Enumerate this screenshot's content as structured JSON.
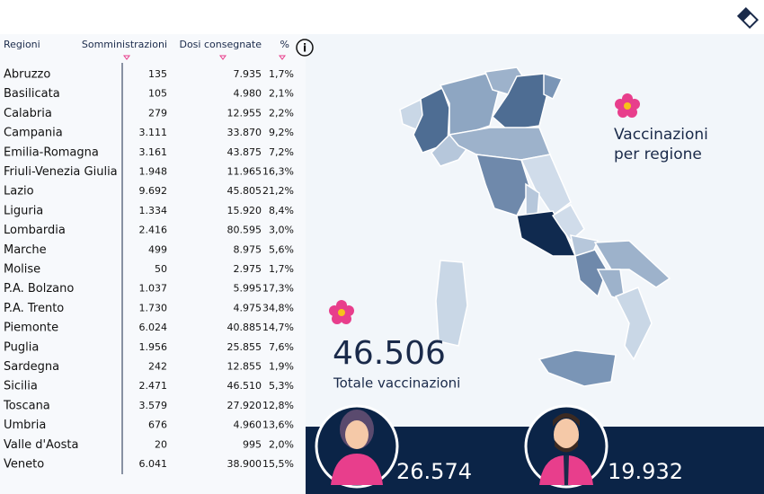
{
  "table": {
    "headers": [
      "Regioni",
      "Somministrazioni",
      "Dosi consegnate",
      "%"
    ],
    "rows": [
      [
        "Abruzzo",
        "135",
        "7.935",
        "1,7%"
      ],
      [
        "Basilicata",
        "105",
        "4.980",
        "2,1%"
      ],
      [
        "Calabria",
        "279",
        "12.955",
        "2,2%"
      ],
      [
        "Campania",
        "3.111",
        "33.870",
        "9,2%"
      ],
      [
        "Emilia-Romagna",
        "3.161",
        "43.875",
        "7,2%"
      ],
      [
        "Friuli-Venezia Giulia",
        "1.948",
        "11.965",
        "16,3%"
      ],
      [
        "Lazio",
        "9.692",
        "45.805",
        "21,2%"
      ],
      [
        "Liguria",
        "1.334",
        "15.920",
        "8,4%"
      ],
      [
        "Lombardia",
        "2.416",
        "80.595",
        "3,0%"
      ],
      [
        "Marche",
        "499",
        "8.975",
        "5,6%"
      ],
      [
        "Molise",
        "50",
        "2.975",
        "1,7%"
      ],
      [
        "P.A. Bolzano",
        "1.037",
        "5.995",
        "17,3%"
      ],
      [
        "P.A. Trento",
        "1.730",
        "4.975",
        "34,8%"
      ],
      [
        "Piemonte",
        "6.024",
        "40.885",
        "14,7%"
      ],
      [
        "Puglia",
        "1.956",
        "25.855",
        "7,6%"
      ],
      [
        "Sardegna",
        "242",
        "12.855",
        "1,9%"
      ],
      [
        "Sicilia",
        "2.471",
        "46.510",
        "5,3%"
      ],
      [
        "Toscana",
        "3.579",
        "27.920",
        "12,8%"
      ],
      [
        "Umbria",
        "676",
        "4.960",
        "13,6%"
      ],
      [
        "Valle d'Aosta",
        "20",
        "995",
        "2,0%"
      ],
      [
        "Veneto",
        "6.041",
        "38.900",
        "15,5%"
      ]
    ]
  },
  "map_title": [
    "Vaccinazioni",
    "per regione"
  ],
  "summary": {
    "total": "46.506",
    "total_label": "Totale vaccinazioni",
    "women": "26.574",
    "men": "19.932"
  }
}
